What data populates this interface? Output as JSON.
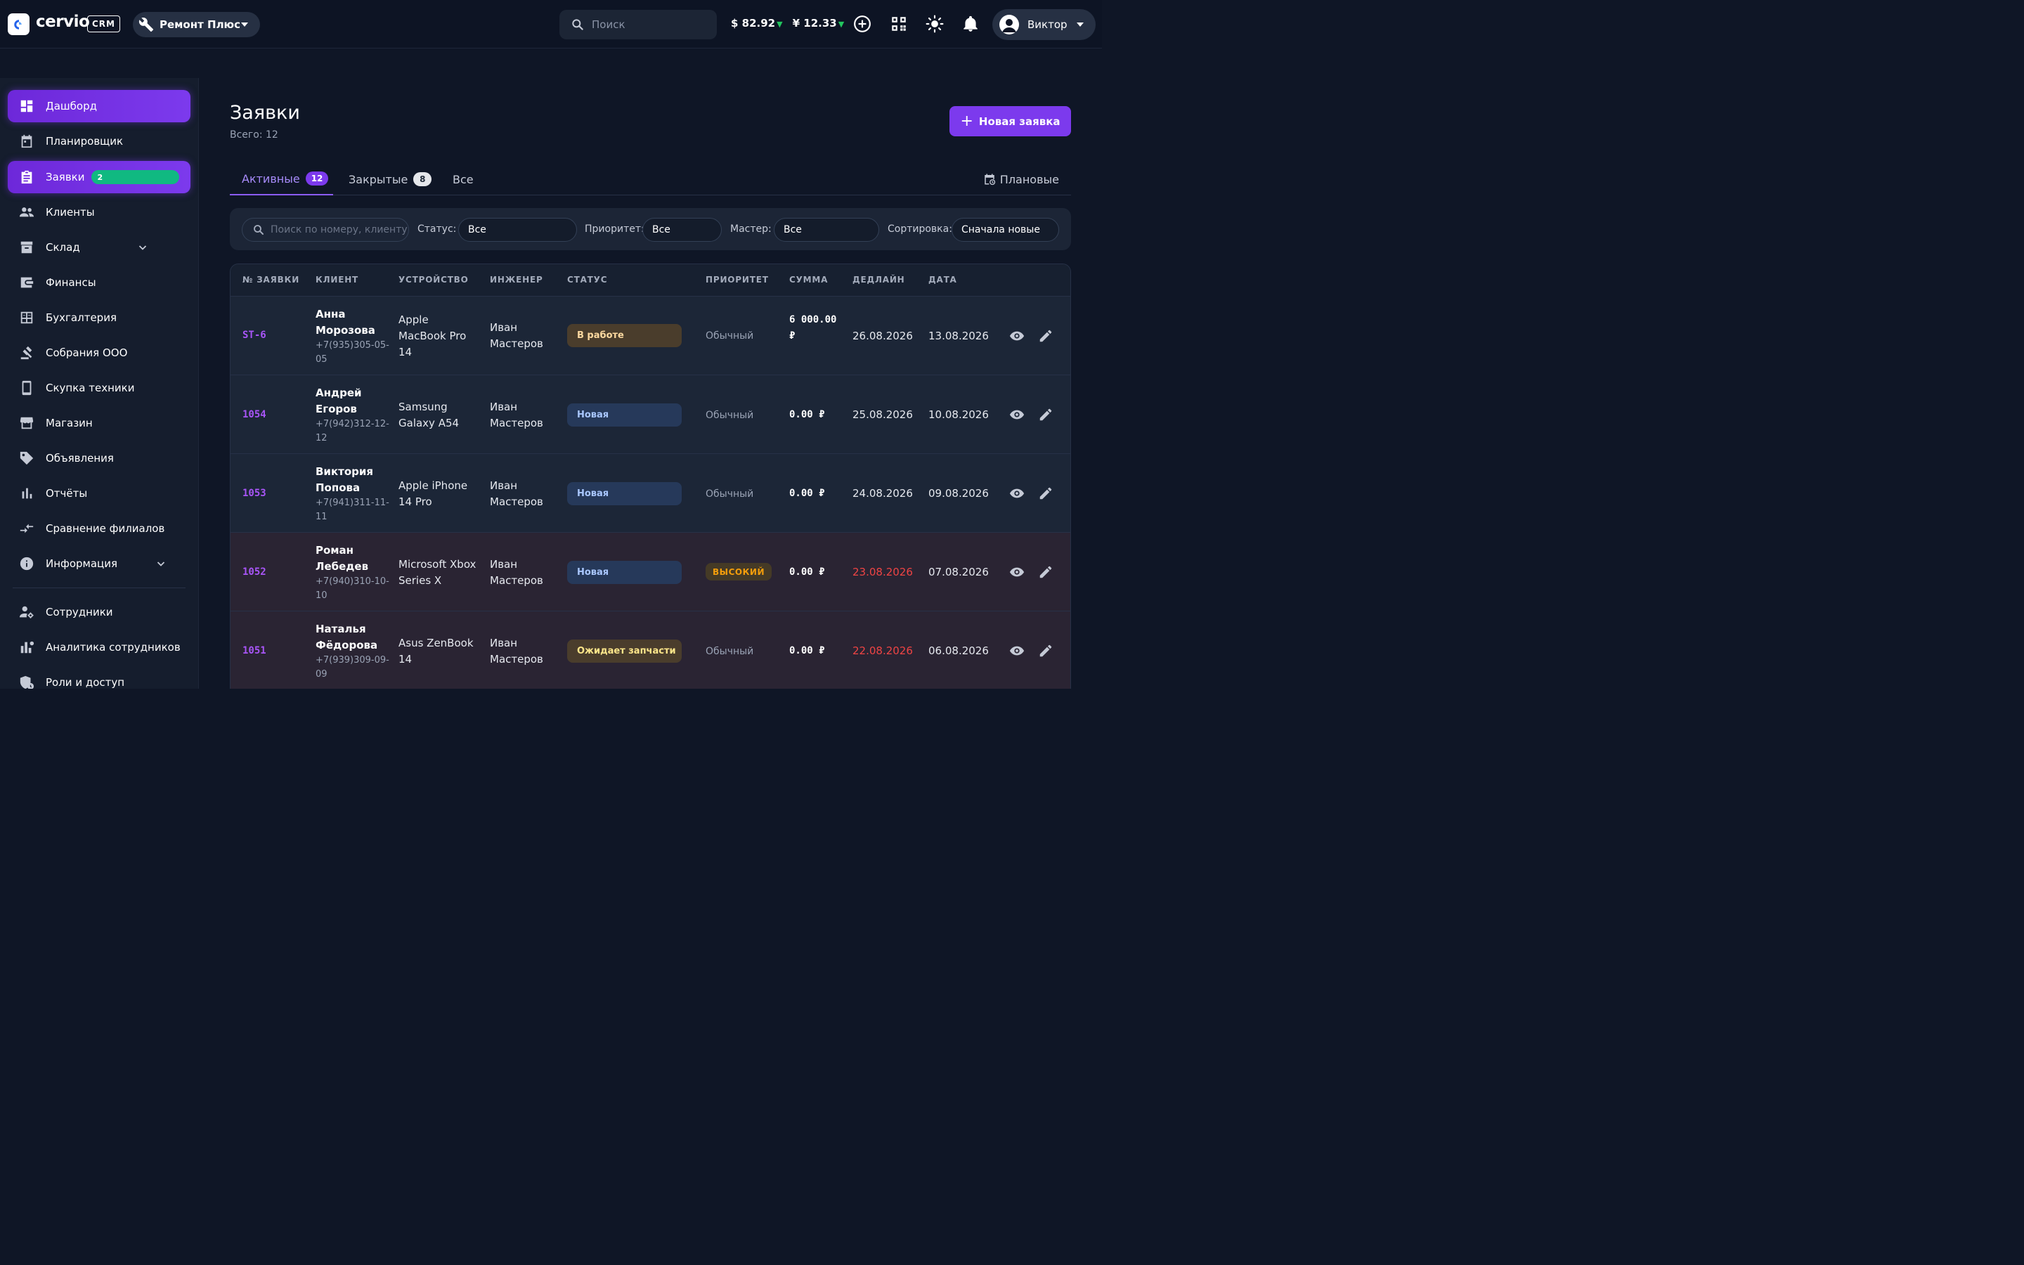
{
  "topbar": {
    "brand": "cervio",
    "brand_tag": "CRM",
    "branch": "Ремонт Плюс",
    "search_placeholder": "Поиск",
    "rates": [
      {
        "symbol": "$",
        "value": "82.92",
        "trend": "▼"
      },
      {
        "symbol": "¥",
        "value": "12.33",
        "trend": "▼"
      }
    ],
    "icons": [
      "add-circle-icon",
      "qr-code-icon",
      "sun-icon",
      "bell-icon"
    ],
    "user": "Виктор"
  },
  "sidebar": {
    "items": [
      {
        "label": "Дашборд",
        "icon": "dashboard-icon",
        "active": true
      },
      {
        "label": "Планировщик",
        "icon": "calendar-icon"
      },
      {
        "label": "Заявки",
        "icon": "clipboard-icon",
        "active": true,
        "badge": "2"
      },
      {
        "label": "Клиенты",
        "icon": "people-icon"
      },
      {
        "label": "Склад",
        "icon": "warehouse-icon",
        "expandable": true
      },
      {
        "label": "Финансы",
        "icon": "wallet-icon"
      },
      {
        "label": "Бухгалтерия",
        "icon": "calculator-icon"
      },
      {
        "label": "Собрания ООО",
        "icon": "gavel-icon"
      },
      {
        "label": "Скупка техники",
        "icon": "phone-icon"
      },
      {
        "label": "Магазин",
        "icon": "store-icon"
      },
      {
        "label": "Объявления",
        "icon": "tag-icon"
      },
      {
        "label": "Отчёты",
        "icon": "bar-chart-icon"
      },
      {
        "label": "Сравнение филиалов",
        "icon": "compare-arrows-icon"
      },
      {
        "label": "Информация",
        "icon": "info-icon",
        "expandable": true
      },
      {
        "label": "Сотрудники",
        "icon": "staff-settings-icon"
      },
      {
        "label": "Аналитика сотрудников",
        "icon": "analytics-icon"
      },
      {
        "label": "Роли и доступ",
        "icon": "roles-icon"
      }
    ]
  },
  "main": {
    "title": "Заявки",
    "subtitle": "Всего: 12",
    "new_button": "Новая заявка",
    "tabs": [
      {
        "label": "Активные",
        "count": "12",
        "active": true
      },
      {
        "label": "Закрытые",
        "count": "8"
      },
      {
        "label": "Все"
      }
    ],
    "planned_tab": "Плановые",
    "filters": {
      "search_placeholder": "Поиск по номеру, клиенту, т",
      "status_label": "Статус:",
      "status_value": "Все",
      "priority_label": "Приоритет:",
      "priority_value": "Все",
      "master_label": "Мастер:",
      "master_value": "Все",
      "sort_label": "Сортировка:",
      "sort_value": "Сначала новые"
    },
    "table": {
      "headers": [
        "№ ЗАЯВКИ",
        "КЛИЕНТ",
        "УСТРОЙСТВО",
        "ИНЖЕНЕР",
        "СТАТУС",
        "ПРИОРИТЕТ",
        "СУММА",
        "ДЕДЛАЙН",
        "ДАТА"
      ],
      "rows": [
        {
          "num": "ST-6",
          "client": "Анна Морозова",
          "phone": "+7(935)305-05-05",
          "device": "Apple MacBook Pro 14",
          "engineer": "Иван Мастеров",
          "status": "В работе",
          "status_kind": "work",
          "priority": "Обычный",
          "priority_high": false,
          "sum": "6 000.00 ₽",
          "deadline": "26.08.2026",
          "deadline_overdue": false,
          "date": "13.08.2026"
        },
        {
          "num": "1054",
          "client": "Андрей Егоров",
          "phone": "+7(942)312-12-12",
          "device": "Samsung Galaxy A54",
          "engineer": "Иван Мастеров",
          "status": "Новая",
          "status_kind": "new",
          "priority": "Обычный",
          "priority_high": false,
          "sum": "0.00 ₽",
          "deadline": "25.08.2026",
          "deadline_overdue": false,
          "date": "10.08.2026"
        },
        {
          "num": "1053",
          "client": "Виктория Попова",
          "phone": "+7(941)311-11-11",
          "device": "Apple iPhone 14 Pro",
          "engineer": "Иван Мастеров",
          "status": "Новая",
          "status_kind": "new",
          "priority": "Обычный",
          "priority_high": false,
          "sum": "0.00 ₽",
          "deadline": "24.08.2026",
          "deadline_overdue": false,
          "date": "09.08.2026"
        },
        {
          "num": "1052",
          "client": "Роман Лебедев",
          "phone": "+7(940)310-10-10",
          "device": "Microsoft Xbox Series X",
          "engineer": "Иван Мастеров",
          "status": "Новая",
          "status_kind": "new",
          "priority": "ВЫСОКИЙ",
          "priority_high": true,
          "sum": "0.00 ₽",
          "deadline": "23.08.2026",
          "deadline_overdue": true,
          "date": "07.08.2026"
        },
        {
          "num": "1051",
          "client": "Наталья Фёдорова",
          "phone": "+7(939)309-09-09",
          "device": "Asus ZenBook 14",
          "engineer": "Иван Мастеров",
          "status": "Ожидает запчасти",
          "status_kind": "parts",
          "priority": "Обычный",
          "priority_high": false,
          "sum": "0.00 ₽",
          "deadline": "22.08.2026",
          "deadline_overdue": true,
          "date": "06.08.2026"
        }
      ]
    }
  },
  "colors": {
    "accent": "#7c3aed",
    "badge_green": "#10b981",
    "overdue": "#ef4444",
    "priority_high": "#f59e0b"
  }
}
